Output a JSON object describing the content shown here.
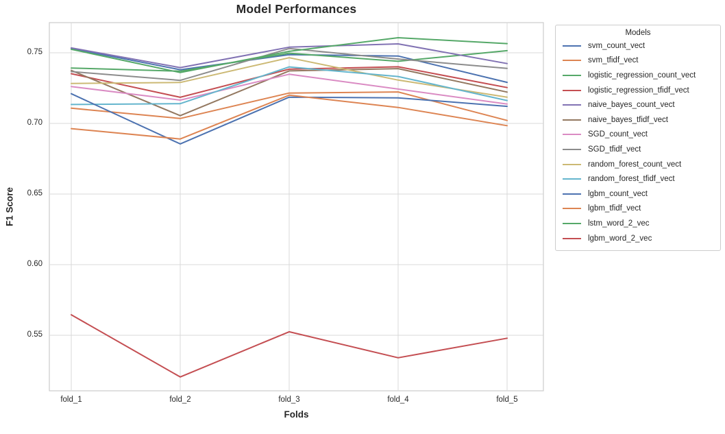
{
  "chart_data": {
    "type": "line",
    "title": "Model Performances",
    "xlabel": "Folds",
    "ylabel": "F1 Score",
    "categories": [
      "fold_1",
      "fold_2",
      "fold_3",
      "fold_4",
      "fold_5"
    ],
    "yticks": [
      0.75,
      0.7,
      0.65,
      0.6,
      0.55
    ],
    "ylim": [
      0.511,
      0.771
    ],
    "grid": true,
    "legend_title": "Models",
    "legend_position": "right",
    "series": [
      {
        "name": "svm_count_vect",
        "color": "#4C72B0",
        "values": [
          0.753,
          0.738,
          0.7487,
          0.7477,
          0.7291
        ]
      },
      {
        "name": "svm_tfidf_vect",
        "color": "#DD8452",
        "values": [
          0.7108,
          0.7035,
          0.7215,
          0.7223,
          0.7021
        ]
      },
      {
        "name": "logistic_regression_count_vect",
        "color": "#55A868",
        "values": [
          0.7392,
          0.737,
          0.7497,
          0.744,
          0.7515
        ]
      },
      {
        "name": "logistic_regression_tfidf_vect",
        "color": "#C44E52",
        "values": [
          0.7352,
          0.7185,
          0.7384,
          0.7401,
          0.7254
        ]
      },
      {
        "name": "naive_bayes_count_vect",
        "color": "#8172B3",
        "values": [
          0.7535,
          0.7395,
          0.754,
          0.7563,
          0.7424
        ]
      },
      {
        "name": "naive_bayes_tfidf_vect",
        "color": "#937860",
        "values": [
          0.7375,
          0.7055,
          0.7372,
          0.7388,
          0.7222
        ]
      },
      {
        "name": "SGD_count_vect",
        "color": "#DA8BC3",
        "values": [
          0.7261,
          0.7165,
          0.7348,
          0.7243,
          0.7137
        ]
      },
      {
        "name": "SGD_tfidf_vect",
        "color": "#8C8C8C",
        "values": [
          0.7367,
          0.7305,
          0.753,
          0.7456,
          0.739
        ]
      },
      {
        "name": "random_forest_count_vect",
        "color": "#CCB974",
        "values": [
          0.7283,
          0.729,
          0.7465,
          0.7307,
          0.7186
        ]
      },
      {
        "name": "random_forest_tfidf_vect",
        "color": "#64B5CD",
        "values": [
          0.7134,
          0.714,
          0.74,
          0.7332,
          0.7162
        ]
      },
      {
        "name": "lgbm_count_vect",
        "color": "#4C72B0",
        "values": [
          0.721,
          0.6855,
          0.7186,
          0.7181,
          0.7121
        ]
      },
      {
        "name": "lgbm_tfidf_vect",
        "color": "#DD8452",
        "values": [
          0.6963,
          0.689,
          0.72,
          0.7113,
          0.6984
        ]
      },
      {
        "name": "lstm_word_2_vec",
        "color": "#55A868",
        "values": [
          0.7525,
          0.736,
          0.751,
          0.7607,
          0.7565
        ]
      },
      {
        "name": "lgbm_word_2_vec",
        "color": "#C44E52",
        "values": [
          0.5645,
          0.5205,
          0.5525,
          0.5341,
          0.5479
        ]
      }
    ]
  }
}
